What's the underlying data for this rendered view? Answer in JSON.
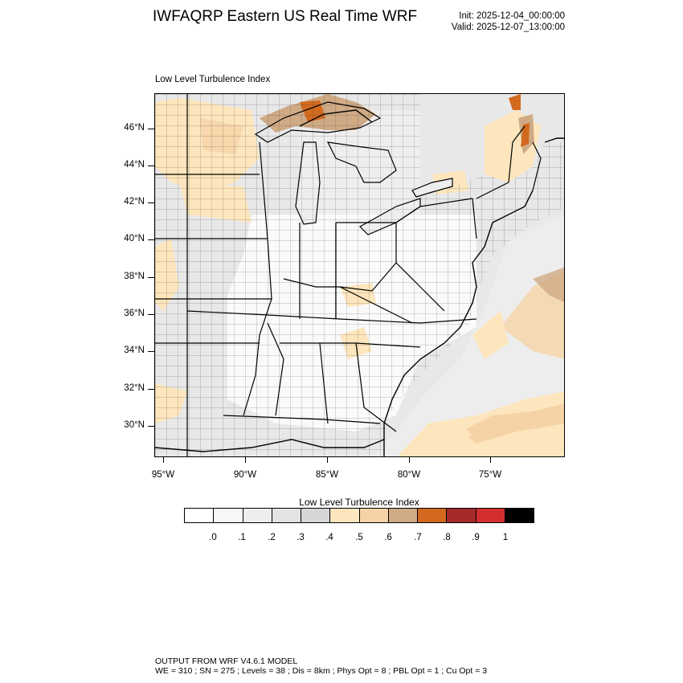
{
  "header": {
    "title": "IWFAQRP Eastern US Real Time WRF",
    "init": "Init: 2025-12-04_00:00:00",
    "valid": "Valid: 2025-12-07_13:00:00"
  },
  "plot": {
    "label": "Low Level Turbulence Index",
    "lat_labels": [
      "46°N",
      "44°N",
      "42°N",
      "40°N",
      "38°N",
      "36°N",
      "34°N",
      "32°N",
      "30°N"
    ],
    "lon_labels": [
      "95°W",
      "90°W",
      "85°W",
      "80°W",
      "75°W"
    ]
  },
  "legend": {
    "title": "Low Level Turbulence Index",
    "colors": [
      "#ffffff",
      "#f7f7f7",
      "#eeeeee",
      "#e3e3e3",
      "#d6d6d6",
      "#fde6bd",
      "#f5d3a6",
      "#cfaa85",
      "#d2691e",
      "#a52a2a",
      "#d32f2f",
      "#000000"
    ],
    "tick_labels": [
      ".0",
      ".1",
      ".2",
      ".3",
      ".4",
      ".5",
      ".6",
      ".7",
      ".8",
      ".9",
      "1"
    ]
  },
  "footer": {
    "line1": "OUTPUT FROM WRF V4.6.1 MODEL",
    "line2": "WE = 310 ; SN = 275 ; Levels = 38 ; Dis = 8km ; Phys Opt = 8 ; PBL Opt = 1 ; Cu Opt = 3"
  }
}
